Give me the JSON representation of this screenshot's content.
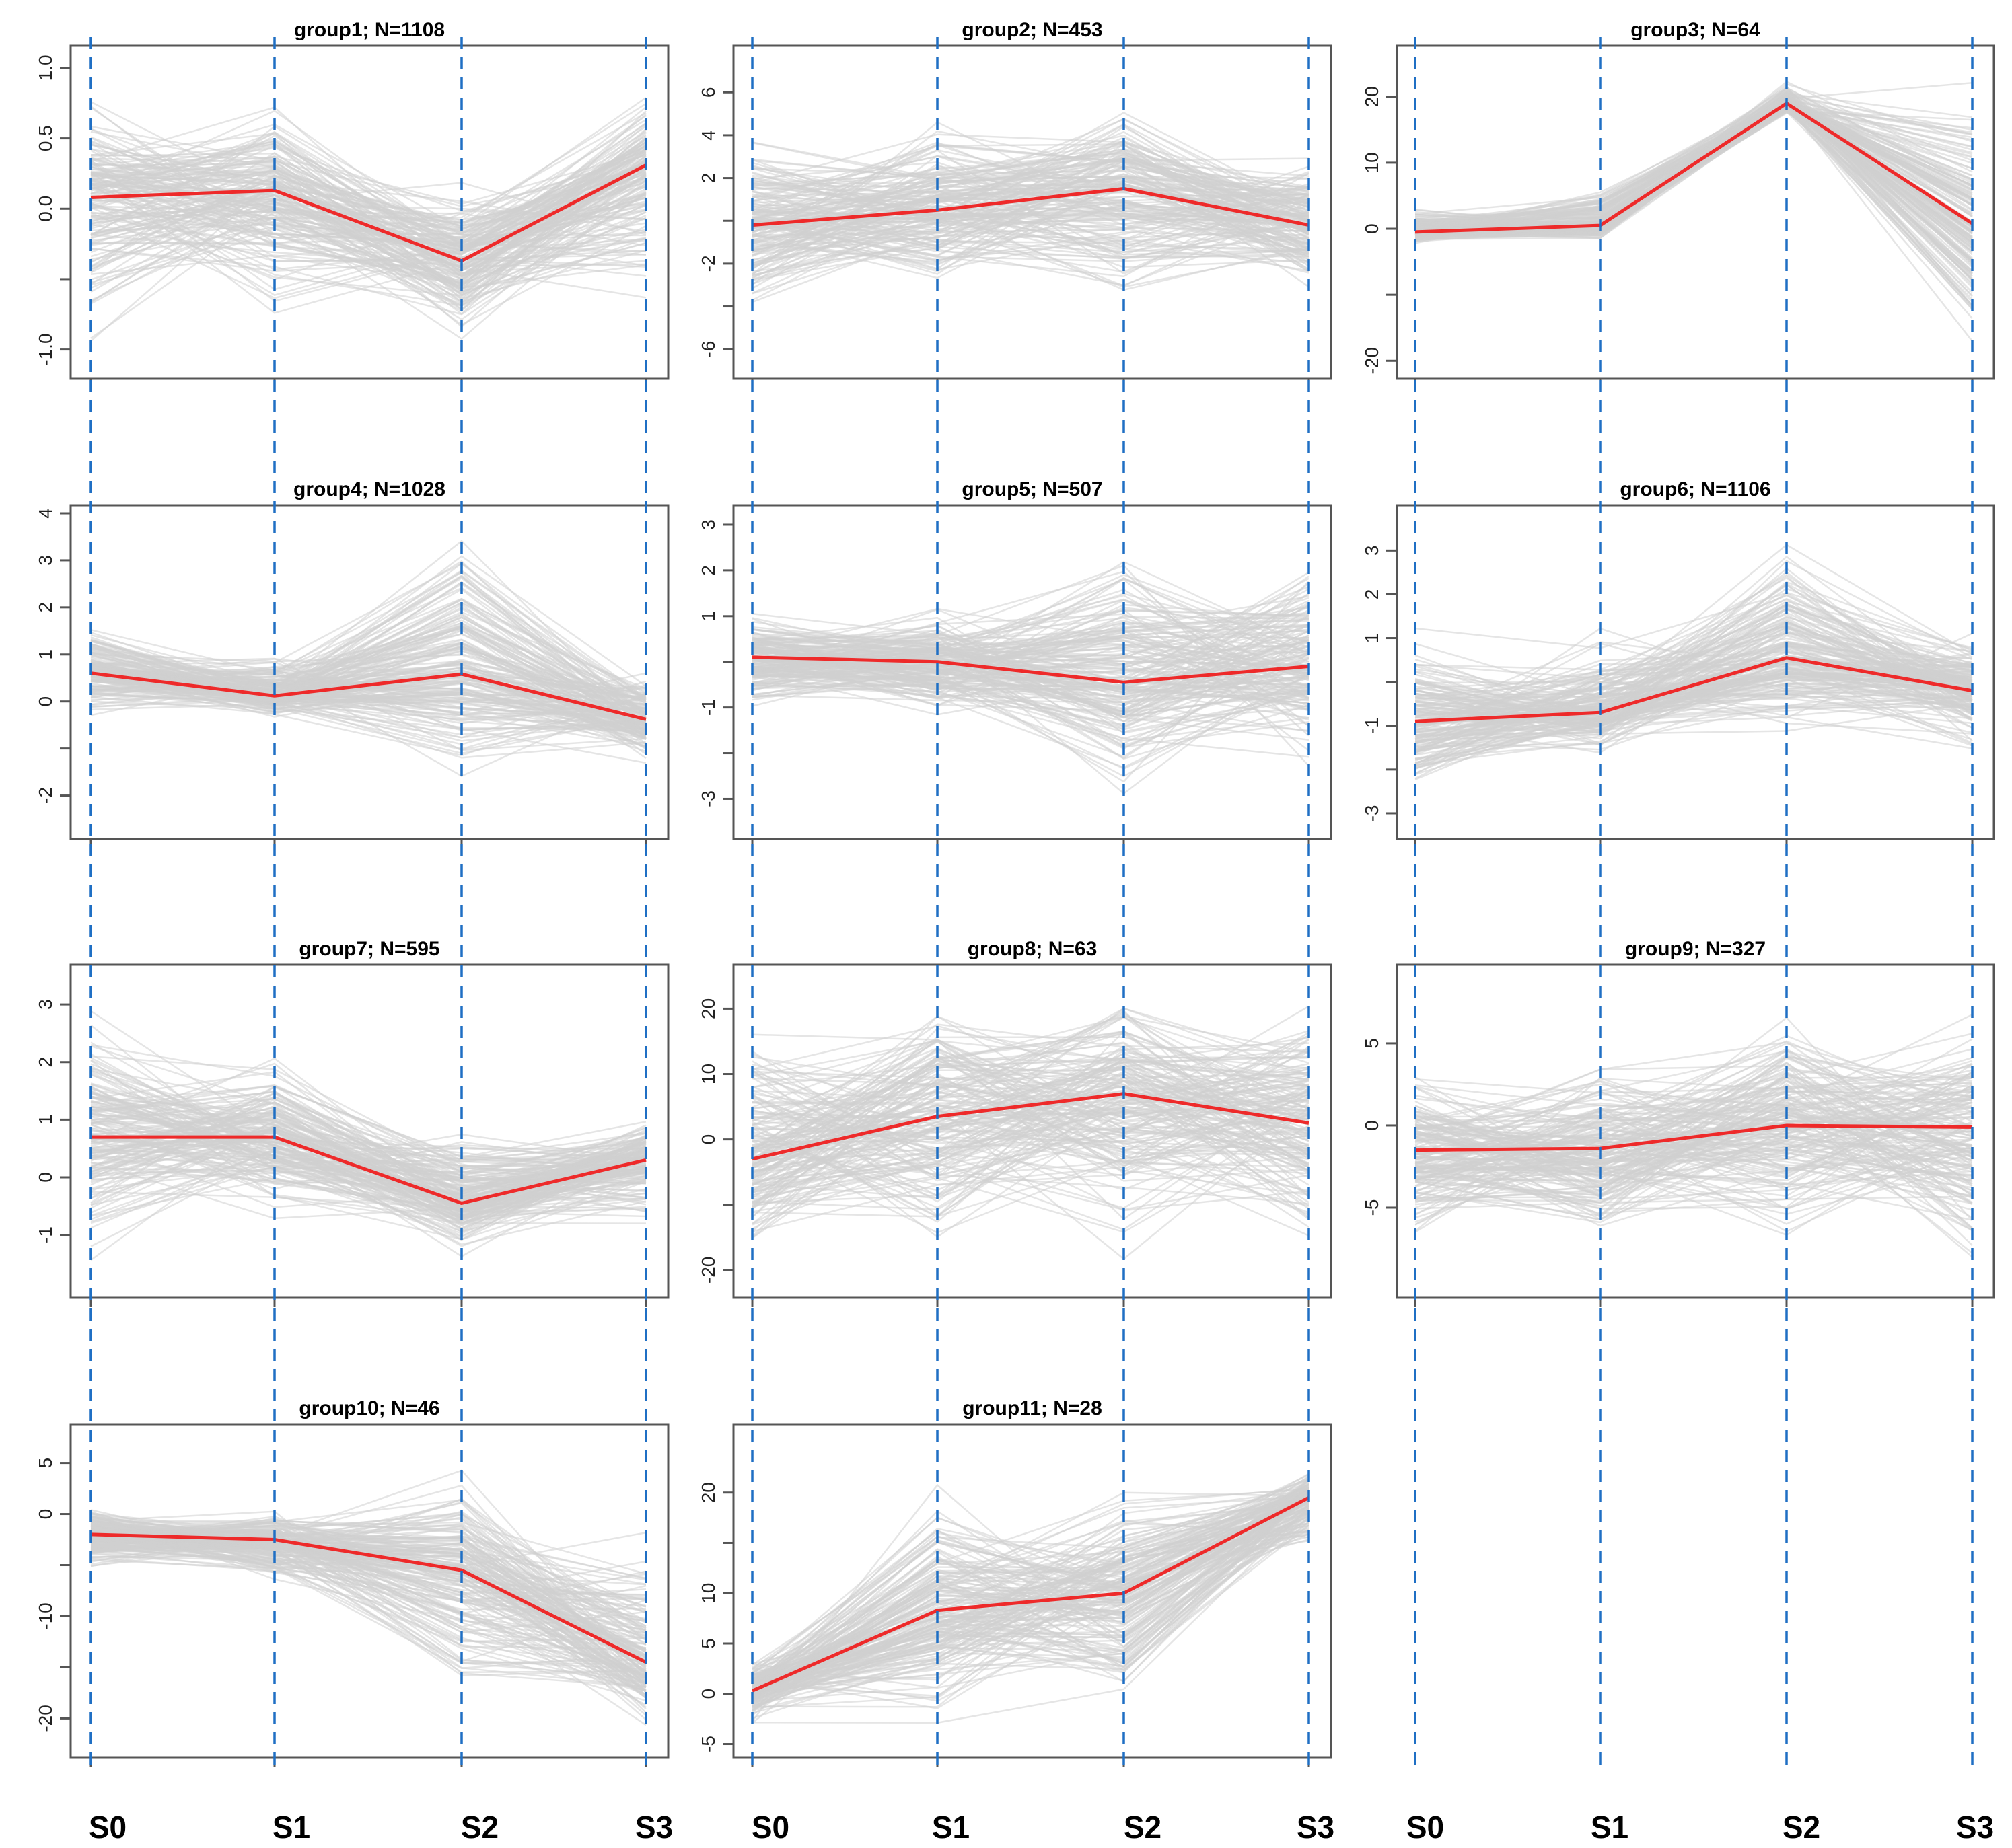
{
  "chart_data": [
    {
      "type": "line",
      "title": "group1; N=1108",
      "categories": [
        "S0",
        "S1",
        "S2",
        "S3"
      ],
      "yticks": [
        -1.0,
        -0.5,
        0.0,
        0.5,
        1.0
      ],
      "ytick_labels": [
        "-1.0",
        "",
        "0.0",
        "0.5",
        "1.0"
      ],
      "ylim": [
        -1.15,
        1.1
      ],
      "mean_values": [
        0.08,
        0.13,
        -0.37,
        0.31
      ],
      "band": {
        "lower": [
          -1.05,
          -0.85,
          -1.0,
          -0.75
        ],
        "upper": [
          0.95,
          0.85,
          0.2,
          0.95
        ]
      },
      "colors": {
        "mean": "#ee2a2a",
        "profiles": "#cfcfcf"
      }
    },
    {
      "type": "line",
      "title": "group2; N=453",
      "categories": [
        "S0",
        "S1",
        "S2",
        "S3"
      ],
      "yticks": [
        -6,
        -4,
        -2,
        0,
        2,
        4,
        6
      ],
      "ytick_labels": [
        "-6",
        "",
        "-2",
        "",
        "2",
        "4",
        "6"
      ],
      "ylim": [
        -7.0,
        7.8
      ],
      "mean_values": [
        -0.2,
        0.5,
        1.5,
        -0.2
      ],
      "band": {
        "lower": [
          -5.5,
          -4.0,
          -4.5,
          -3.5
        ],
        "upper": [
          4.5,
          5.0,
          6.0,
          3.5
        ]
      },
      "colors": {
        "mean": "#ee2a2a",
        "profiles": "#cfcfcf"
      }
    },
    {
      "type": "line",
      "title": "group3; N=64",
      "categories": [
        "S0",
        "S1",
        "S2",
        "S3"
      ],
      "yticks": [
        -20,
        -10,
        0,
        10,
        20
      ],
      "ytick_labels": [
        "-20",
        "",
        "0",
        "10",
        "20"
      ],
      "ylim": [
        -21.5,
        26.5
      ],
      "mean_values": [
        -0.5,
        0.5,
        19.0,
        0.8
      ],
      "band": {
        "lower": [
          -2.5,
          -2.5,
          17.0,
          -20.0
        ],
        "upper": [
          3.5,
          7.0,
          23.0,
          25.0
        ]
      },
      "colors": {
        "mean": "#ee2a2a",
        "profiles": "#cfcfcf"
      }
    },
    {
      "type": "line",
      "title": "group4; N=1028",
      "categories": [
        "S0",
        "S1",
        "S2",
        "S3"
      ],
      "yticks": [
        -2,
        -1,
        0,
        1,
        2,
        3,
        4
      ],
      "ytick_labels": [
        "-2",
        "",
        "0",
        "1",
        "2",
        "3",
        "4"
      ],
      "ylim": [
        -2.75,
        4.0
      ],
      "mean_values": [
        0.6,
        0.12,
        0.58,
        -0.38
      ],
      "band": {
        "lower": [
          -0.5,
          -0.4,
          -2.5,
          -1.4
        ],
        "upper": [
          1.7,
          1.2,
          3.9,
          0.7
        ]
      },
      "colors": {
        "mean": "#ee2a2a",
        "profiles": "#cfcfcf"
      }
    },
    {
      "type": "line",
      "title": "group5; N=507",
      "categories": [
        "S0",
        "S1",
        "S2",
        "S3"
      ],
      "yticks": [
        -3,
        -2,
        -1,
        0,
        1,
        2,
        3
      ],
      "ytick_labels": [
        "-3",
        "",
        "-1",
        "",
        "1",
        "2",
        "3"
      ],
      "ylim": [
        -3.7,
        3.25
      ],
      "mean_values": [
        0.1,
        0.0,
        -0.45,
        -0.1
      ],
      "band": {
        "lower": [
          -1.2,
          -1.3,
          -3.3,
          -2.8
        ],
        "upper": [
          1.3,
          1.5,
          3.0,
          3.0
        ]
      },
      "colors": {
        "mean": "#ee2a2a",
        "profiles": "#cfcfcf"
      }
    },
    {
      "type": "line",
      "title": "group6; N=1106",
      "categories": [
        "S0",
        "S1",
        "S2",
        "S3"
      ],
      "yticks": [
        -3,
        -2,
        -1,
        0,
        1,
        2,
        3
      ],
      "ytick_labels": [
        "-3",
        "",
        "-1",
        "",
        "1",
        "2",
        "3"
      ],
      "ylim": [
        -3.4,
        3.85
      ],
      "mean_values": [
        -0.9,
        -0.7,
        0.55,
        -0.2
      ],
      "band": {
        "lower": [
          -2.8,
          -1.8,
          -1.5,
          -1.8
        ],
        "upper": [
          1.5,
          1.3,
          3.5,
          1.5
        ]
      },
      "colors": {
        "mean": "#ee2a2a",
        "profiles": "#cfcfcf"
      }
    },
    {
      "type": "line",
      "title": "group7; N=595",
      "categories": [
        "S0",
        "S1",
        "S2",
        "S3"
      ],
      "yticks": [
        -1,
        0,
        1,
        2,
        3
      ],
      "ytick_labels": [
        "-1",
        "0",
        "1",
        "2",
        "3"
      ],
      "ylim": [
        -1.95,
        3.55
      ],
      "mean_values": [
        0.7,
        0.7,
        -0.45,
        0.3
      ],
      "band": {
        "lower": [
          -1.7,
          -0.9,
          -1.5,
          -1.0
        ],
        "upper": [
          3.3,
          2.3,
          1.0,
          1.2
        ]
      },
      "colors": {
        "mean": "#ee2a2a",
        "profiles": "#cfcfcf"
      }
    },
    {
      "type": "line",
      "title": "group8; N=63",
      "categories": [
        "S0",
        "S1",
        "S2",
        "S3"
      ],
      "yticks": [
        -20,
        -10,
        0,
        10,
        20
      ],
      "ytick_labels": [
        "-20",
        "",
        "0",
        "10",
        "20"
      ],
      "ylim": [
        -23.0,
        25.5
      ],
      "mean_values": [
        -3.0,
        3.5,
        7.0,
        2.5
      ],
      "band": {
        "lower": [
          -20.0,
          -20.0,
          -20.0,
          -20.0
        ],
        "upper": [
          22.0,
          25.0,
          24.0,
          24.0
        ]
      },
      "colors": {
        "mean": "#ee2a2a",
        "profiles": "#cfcfcf"
      }
    },
    {
      "type": "line",
      "title": "group9; N=327",
      "categories": [
        "S0",
        "S1",
        "S2",
        "S3"
      ],
      "yticks": [
        -5,
        0,
        5
      ],
      "ytick_labels": [
        "-5",
        "0",
        "5"
      ],
      "ylim": [
        -10.0,
        9.3
      ],
      "mean_values": [
        -1.5,
        -1.4,
        0.0,
        -0.1
      ],
      "band": {
        "lower": [
          -8.0,
          -8.0,
          -8.5,
          -9.0
        ],
        "upper": [
          4.0,
          5.0,
          7.0,
          8.0
        ]
      },
      "colors": {
        "mean": "#ee2a2a",
        "profiles": "#cfcfcf"
      }
    },
    {
      "type": "line",
      "title": "group10; N=46",
      "categories": [
        "S0",
        "S1",
        "S2",
        "S3"
      ],
      "yticks": [
        -20,
        -15,
        -10,
        -5,
        0,
        5
      ],
      "ytick_labels": [
        "-20",
        "",
        "-10",
        "",
        "0",
        "5"
      ],
      "ylim": [
        -23.0,
        8.0
      ],
      "mean_values": [
        -2.0,
        -2.5,
        -5.5,
        -14.5
      ],
      "band": {
        "lower": [
          -6.0,
          -7.0,
          -22.0,
          -22.0
        ],
        "upper": [
          1.5,
          1.0,
          6.0,
          0.0
        ]
      },
      "colors": {
        "mean": "#ee2a2a",
        "profiles": "#cfcfcf"
      }
    },
    {
      "type": "line",
      "title": "group11; N=28",
      "categories": [
        "S0",
        "S1",
        "S2",
        "S3"
      ],
      "yticks": [
        -5,
        0,
        5,
        10,
        15,
        20
      ],
      "ytick_labels": [
        "-5",
        "0",
        "5",
        "10",
        "",
        "20"
      ],
      "ylim": [
        -5.5,
        26.0
      ],
      "mean_values": [
        0.3,
        8.3,
        10.0,
        19.5
      ],
      "band": {
        "lower": [
          -3.5,
          -4.0,
          -4.0,
          14.0
        ],
        "upper": [
          4.0,
          24.0,
          23.0,
          22.5
        ]
      },
      "colors": {
        "mean": "#ee2a2a",
        "profiles": "#cfcfcf"
      }
    }
  ],
  "stage_labels": [
    "S0",
    "S1",
    "S2",
    "S3"
  ],
  "colors": {
    "mean_line": "#ee2a2a",
    "profile_lines": "#cfcfcf",
    "stage_guides": "#1f6fc4",
    "frame": "#555555"
  }
}
